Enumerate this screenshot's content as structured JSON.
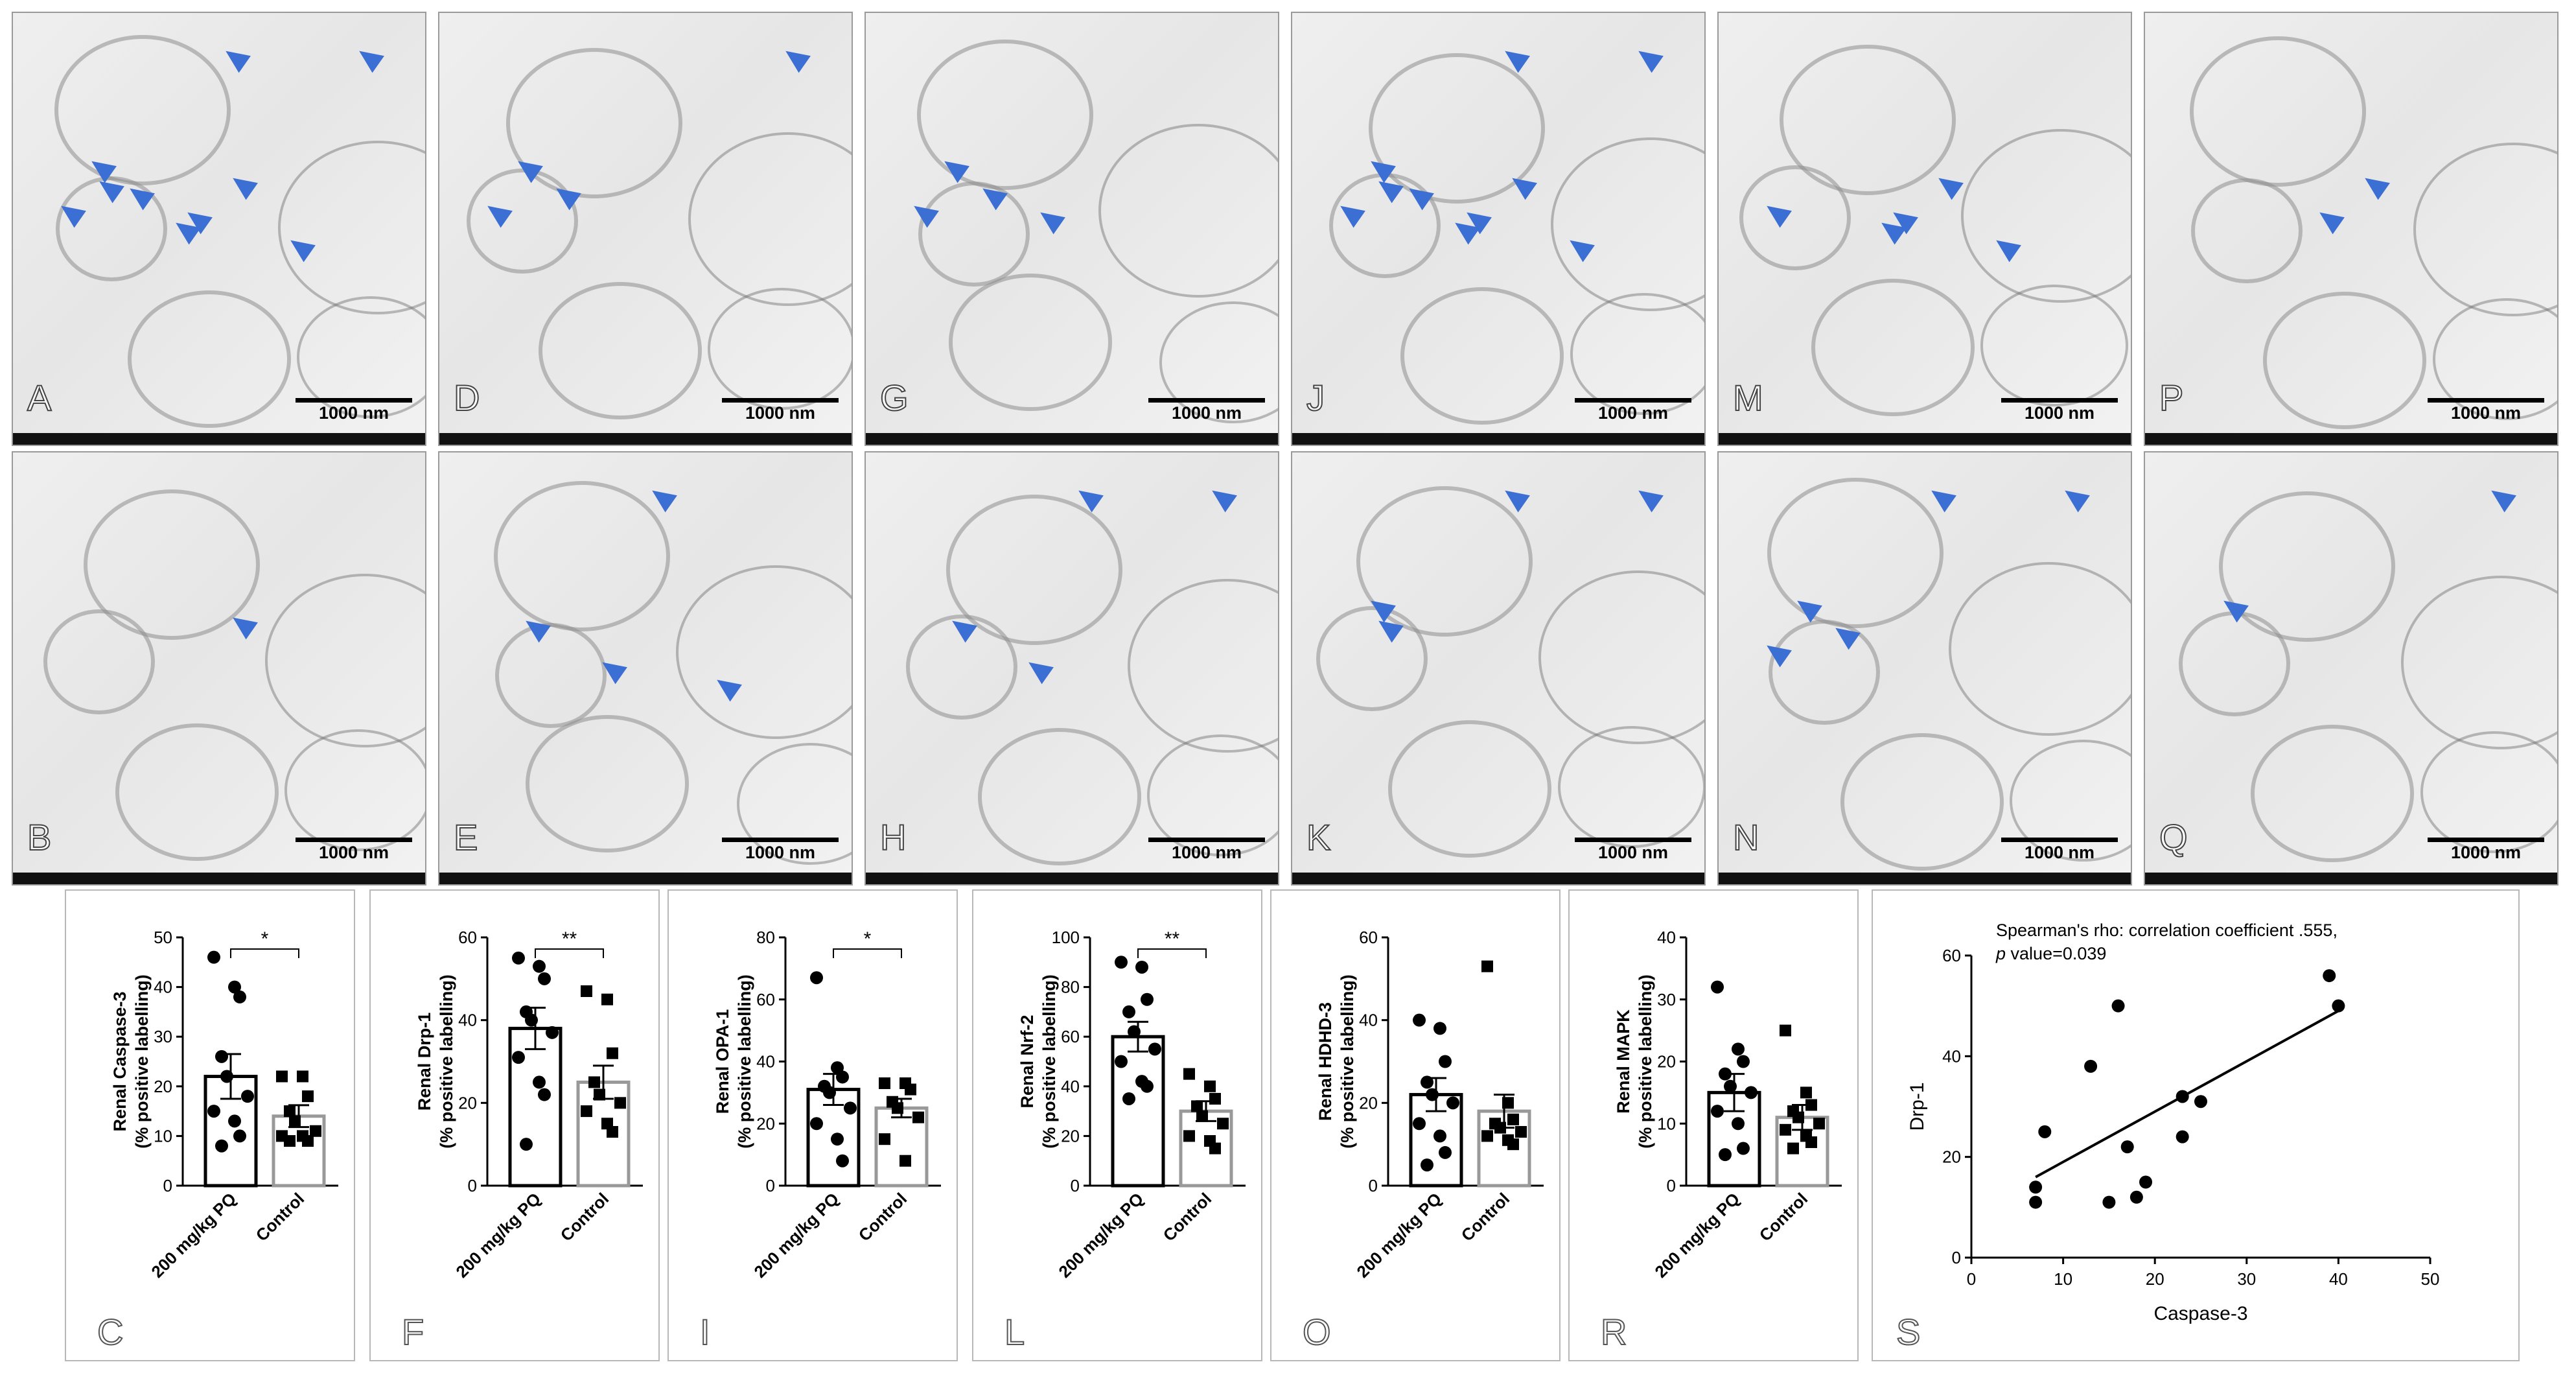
{
  "figure": {
    "scale_label": "1000 nm",
    "micrographs": [
      {
        "letter": "A",
        "arrows": 10
      },
      {
        "letter": "D",
        "arrows": 4
      },
      {
        "letter": "G",
        "arrows": 4
      },
      {
        "letter": "J",
        "arrows": 10
      },
      {
        "letter": "M",
        "arrows": 5
      },
      {
        "letter": "P",
        "arrows": 2
      },
      {
        "letter": "B",
        "arrows": 1
      },
      {
        "letter": "E",
        "arrows": 4
      },
      {
        "letter": "H",
        "arrows": 4
      },
      {
        "letter": "K",
        "arrows": 4
      },
      {
        "letter": "N",
        "arrows": 5
      },
      {
        "letter": "Q",
        "arrows": 2
      }
    ]
  },
  "chart_data": [
    {
      "type": "bar",
      "panel": "C",
      "ylabel_line1": "Renal Caspase-3",
      "ylabel_line2": "(% positive labelling)",
      "ylim": [
        0,
        50
      ],
      "yticks": [
        0,
        10,
        20,
        30,
        40,
        50
      ],
      "categories": [
        "200 mg/kg PQ",
        "Control"
      ],
      "values": [
        22,
        14
      ],
      "sem": [
        4.5,
        2.2
      ],
      "significance": "*",
      "points": [
        [
          46,
          40,
          38,
          26,
          22,
          18,
          15,
          13,
          10,
          8
        ],
        [
          22,
          22,
          18,
          15,
          13,
          11,
          10,
          10,
          9,
          9
        ]
      ]
    },
    {
      "type": "bar",
      "panel": "F",
      "ylabel_line1": "Renal Drp-1",
      "ylabel_line2": "(% positive labelling)",
      "ylim": [
        0,
        60
      ],
      "yticks": [
        0,
        20,
        40,
        60
      ],
      "categories": [
        "200 mg/kg PQ",
        "Control"
      ],
      "values": [
        38,
        25
      ],
      "sem": [
        5,
        4
      ],
      "significance": "**",
      "points": [
        [
          55,
          53,
          50,
          42,
          40,
          37,
          31,
          25,
          22,
          10
        ],
        [
          47,
          45,
          32,
          25,
          22,
          20,
          18,
          15,
          13
        ]
      ]
    },
    {
      "type": "bar",
      "panel": "I",
      "ylabel_line1": "Renal OPA-1",
      "ylabel_line2": "(% positive labelling)",
      "ylim": [
        0,
        80
      ],
      "yticks": [
        0,
        20,
        40,
        60,
        80
      ],
      "categories": [
        "200 mg/kg PQ",
        "Control"
      ],
      "values": [
        31,
        25
      ],
      "sem": [
        5,
        3
      ],
      "significance": "*",
      "points": [
        [
          67,
          38,
          35,
          32,
          30,
          25,
          20,
          15,
          8
        ],
        [
          33,
          33,
          31,
          27,
          25,
          22,
          15,
          8
        ]
      ]
    },
    {
      "type": "bar",
      "panel": "L",
      "ylabel_line1": "Renal Nrf-2",
      "ylabel_line2": "(% positive labelling)",
      "ylim": [
        0,
        100
      ],
      "yticks": [
        0,
        20,
        40,
        60,
        80,
        100
      ],
      "categories": [
        "200 mg/kg PQ",
        "Control"
      ],
      "values": [
        60,
        30
      ],
      "sem": [
        6,
        4
      ],
      "significance": "**",
      "points": [
        [
          90,
          88,
          75,
          70,
          62,
          55,
          50,
          42,
          40,
          35
        ],
        [
          45,
          40,
          35,
          32,
          28,
          25,
          20,
          18,
          15
        ]
      ]
    },
    {
      "type": "bar",
      "panel": "O",
      "ylabel_line1": "Renal HDHD-3",
      "ylabel_line2": "(% positive labelling)",
      "ylim": [
        0,
        60
      ],
      "yticks": [
        0,
        20,
        40,
        60
      ],
      "categories": [
        "200 mg/kg PQ",
        "Control"
      ],
      "values": [
        22,
        18
      ],
      "sem": [
        4,
        4
      ],
      "significance": "",
      "points": [
        [
          40,
          38,
          30,
          25,
          22,
          20,
          15,
          12,
          8,
          5
        ],
        [
          53,
          20,
          16,
          15,
          14,
          13,
          12,
          11,
          10
        ]
      ]
    },
    {
      "type": "bar",
      "panel": "R",
      "ylabel_line1": "Renal MAPK",
      "ylabel_line2": "(% positive labelling)",
      "ylim": [
        0,
        40
      ],
      "yticks": [
        0,
        10,
        20,
        30,
        40
      ],
      "categories": [
        "200 mg/kg PQ",
        "Control"
      ],
      "values": [
        15,
        11
      ],
      "sem": [
        3,
        2
      ],
      "significance": "",
      "points": [
        [
          32,
          22,
          20,
          18,
          16,
          15,
          12,
          10,
          6,
          5
        ],
        [
          25,
          15,
          13,
          12,
          11,
          10,
          9,
          8,
          7,
          6
        ]
      ]
    },
    {
      "type": "scatter",
      "panel": "S",
      "title_line1": "Spearman's rho: correlation coefficient .555,",
      "title_line2_italic": "p",
      "title_line2_rest": " value=0.039",
      "xlabel": "Caspase-3",
      "ylabel": "Drp-1",
      "xlim": [
        0,
        50
      ],
      "ylim": [
        0,
        60
      ],
      "xticks": [
        0,
        10,
        20,
        30,
        40,
        50
      ],
      "yticks": [
        0,
        20,
        40,
        60
      ],
      "points": [
        [
          7,
          14
        ],
        [
          7,
          11
        ],
        [
          8,
          25
        ],
        [
          13,
          38
        ],
        [
          15,
          11
        ],
        [
          16,
          50
        ],
        [
          17,
          22
        ],
        [
          18,
          12
        ],
        [
          19,
          15
        ],
        [
          23,
          32
        ],
        [
          23,
          24
        ],
        [
          25,
          31
        ],
        [
          39,
          56
        ],
        [
          40,
          50
        ]
      ],
      "trendline": [
        [
          7,
          16
        ],
        [
          40,
          49
        ]
      ]
    }
  ]
}
